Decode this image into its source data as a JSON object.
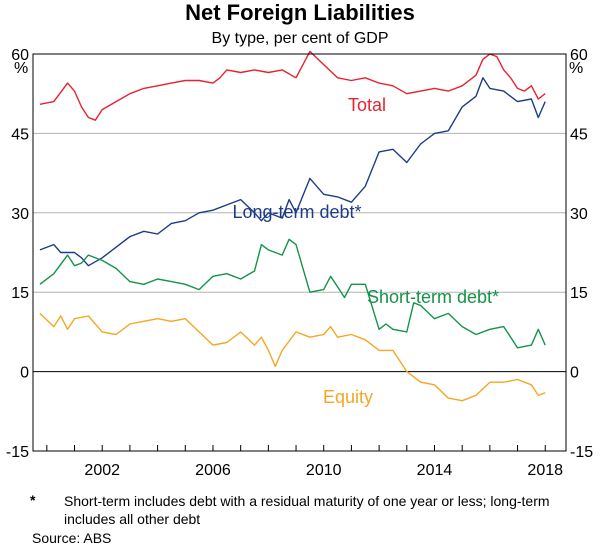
{
  "chart_data": {
    "type": "line",
    "title": "Net Foreign Liabilities",
    "subtitle": "By type, per cent of GDP",
    "ylabel_left": "%",
    "ylabel_right": "%",
    "ylim": [
      -15,
      60
    ],
    "yticks": [
      -15,
      0,
      15,
      30,
      45,
      60
    ],
    "ytick_labels": [
      "-15",
      "0",
      "15",
      "30",
      "45",
      "60"
    ],
    "xlim": [
      1999.5,
      2018.75
    ],
    "xticks": [
      2002,
      2006,
      2010,
      2014,
      2018
    ],
    "xtick_labels": [
      "2002",
      "2006",
      "2010",
      "2014",
      "2018"
    ],
    "grid": "horizontal",
    "series": [
      {
        "name": "Total",
        "color": "#e8212f",
        "points": [
          [
            1999.75,
            50.5
          ],
          [
            2000.25,
            51.0
          ],
          [
            2000.75,
            54.5
          ],
          [
            2001.0,
            53.0
          ],
          [
            2001.25,
            50.0
          ],
          [
            2001.5,
            48.0
          ],
          [
            2001.75,
            47.5
          ],
          [
            2002.0,
            49.5
          ],
          [
            2002.5,
            51.0
          ],
          [
            2003.0,
            52.5
          ],
          [
            2003.5,
            53.5
          ],
          [
            2004.0,
            54.0
          ],
          [
            2004.5,
            54.5
          ],
          [
            2005.0,
            55.0
          ],
          [
            2005.5,
            55.0
          ],
          [
            2006.0,
            54.5
          ],
          [
            2006.25,
            55.5
          ],
          [
            2006.5,
            57.0
          ],
          [
            2007.0,
            56.5
          ],
          [
            2007.5,
            57.0
          ],
          [
            2008.0,
            56.5
          ],
          [
            2008.5,
            57.0
          ],
          [
            2009.0,
            55.5
          ],
          [
            2009.5,
            60.5
          ],
          [
            2010.0,
            58.0
          ],
          [
            2010.5,
            55.5
          ],
          [
            2011.0,
            55.0
          ],
          [
            2011.5,
            55.5
          ],
          [
            2012.0,
            54.5
          ],
          [
            2012.5,
            54.0
          ],
          [
            2013.0,
            52.5
          ],
          [
            2013.5,
            53.0
          ],
          [
            2014.0,
            53.5
          ],
          [
            2014.5,
            53.0
          ],
          [
            2015.0,
            54.0
          ],
          [
            2015.5,
            56.0
          ],
          [
            2015.75,
            59.0
          ],
          [
            2016.0,
            60.0
          ],
          [
            2016.25,
            59.5
          ],
          [
            2016.5,
            57.0
          ],
          [
            2016.75,
            55.5
          ],
          [
            2017.0,
            53.5
          ],
          [
            2017.25,
            53.0
          ],
          [
            2017.5,
            54.0
          ],
          [
            2017.75,
            51.5
          ],
          [
            2018.0,
            52.5
          ]
        ]
      },
      {
        "name": "Long-term debt*",
        "color": "#1d3c87",
        "points": [
          [
            1999.75,
            23.0
          ],
          [
            2000.25,
            24.0
          ],
          [
            2000.5,
            22.5
          ],
          [
            2001.0,
            22.5
          ],
          [
            2001.25,
            21.5
          ],
          [
            2001.5,
            20.0
          ],
          [
            2002.0,
            21.5
          ],
          [
            2002.5,
            23.5
          ],
          [
            2003.0,
            25.5
          ],
          [
            2003.5,
            26.5
          ],
          [
            2004.0,
            26.0
          ],
          [
            2004.5,
            28.0
          ],
          [
            2005.0,
            28.5
          ],
          [
            2005.5,
            30.0
          ],
          [
            2006.0,
            30.5
          ],
          [
            2006.5,
            31.5
          ],
          [
            2007.0,
            32.5
          ],
          [
            2007.5,
            30.0
          ],
          [
            2007.75,
            28.5
          ],
          [
            2008.0,
            30.0
          ],
          [
            2008.5,
            29.0
          ],
          [
            2008.75,
            32.5
          ],
          [
            2009.0,
            30.0
          ],
          [
            2009.5,
            36.5
          ],
          [
            2010.0,
            33.5
          ],
          [
            2010.5,
            33.0
          ],
          [
            2011.0,
            32.0
          ],
          [
            2011.5,
            35.0
          ],
          [
            2012.0,
            41.5
          ],
          [
            2012.5,
            42.0
          ],
          [
            2013.0,
            39.5
          ],
          [
            2013.5,
            43.0
          ],
          [
            2014.0,
            45.0
          ],
          [
            2014.5,
            45.5
          ],
          [
            2015.0,
            50.0
          ],
          [
            2015.5,
            52.0
          ],
          [
            2015.75,
            55.5
          ],
          [
            2016.0,
            53.5
          ],
          [
            2016.5,
            53.0
          ],
          [
            2017.0,
            51.0
          ],
          [
            2017.5,
            51.5
          ],
          [
            2017.75,
            48.0
          ],
          [
            2018.0,
            51.0
          ]
        ]
      },
      {
        "name": "Short-term debt*",
        "color": "#14934a",
        "points": [
          [
            1999.75,
            16.5
          ],
          [
            2000.25,
            18.5
          ],
          [
            2000.75,
            22.0
          ],
          [
            2001.0,
            20.0
          ],
          [
            2001.25,
            20.5
          ],
          [
            2001.5,
            22.0
          ],
          [
            2002.0,
            21.0
          ],
          [
            2002.5,
            19.5
          ],
          [
            2003.0,
            17.0
          ],
          [
            2003.5,
            16.5
          ],
          [
            2004.0,
            17.5
          ],
          [
            2004.5,
            17.0
          ],
          [
            2005.0,
            16.5
          ],
          [
            2005.5,
            15.5
          ],
          [
            2006.0,
            18.0
          ],
          [
            2006.5,
            18.5
          ],
          [
            2007.0,
            17.5
          ],
          [
            2007.5,
            19.0
          ],
          [
            2007.75,
            24.0
          ],
          [
            2008.0,
            23.0
          ],
          [
            2008.5,
            22.0
          ],
          [
            2008.75,
            25.0
          ],
          [
            2009.0,
            24.0
          ],
          [
            2009.5,
            15.0
          ],
          [
            2010.0,
            15.5
          ],
          [
            2010.25,
            18.0
          ],
          [
            2010.5,
            16.0
          ],
          [
            2010.75,
            14.0
          ],
          [
            2011.0,
            16.5
          ],
          [
            2011.5,
            16.5
          ],
          [
            2012.0,
            8.0
          ],
          [
            2012.25,
            9.0
          ],
          [
            2012.5,
            8.0
          ],
          [
            2013.0,
            7.5
          ],
          [
            2013.25,
            13.0
          ],
          [
            2013.5,
            12.5
          ],
          [
            2014.0,
            10.0
          ],
          [
            2014.5,
            11.0
          ],
          [
            2015.0,
            8.5
          ],
          [
            2015.5,
            7.0
          ],
          [
            2016.0,
            8.0
          ],
          [
            2016.5,
            8.5
          ],
          [
            2017.0,
            4.5
          ],
          [
            2017.5,
            5.0
          ],
          [
            2017.75,
            8.0
          ],
          [
            2018.0,
            5.0
          ]
        ]
      },
      {
        "name": "Equity",
        "color": "#f5a623",
        "points": [
          [
            1999.75,
            11.0
          ],
          [
            2000.25,
            8.5
          ],
          [
            2000.5,
            10.5
          ],
          [
            2000.75,
            8.0
          ],
          [
            2001.0,
            10.0
          ],
          [
            2001.5,
            10.5
          ],
          [
            2002.0,
            7.5
          ],
          [
            2002.5,
            7.0
          ],
          [
            2003.0,
            9.0
          ],
          [
            2003.5,
            9.5
          ],
          [
            2004.0,
            10.0
          ],
          [
            2004.5,
            9.5
          ],
          [
            2005.0,
            10.0
          ],
          [
            2005.5,
            7.5
          ],
          [
            2006.0,
            5.0
          ],
          [
            2006.5,
            5.5
          ],
          [
            2007.0,
            7.5
          ],
          [
            2007.5,
            5.0
          ],
          [
            2007.75,
            6.5
          ],
          [
            2008.0,
            4.0
          ],
          [
            2008.25,
            1.0
          ],
          [
            2008.5,
            4.0
          ],
          [
            2009.0,
            7.5
          ],
          [
            2009.5,
            6.5
          ],
          [
            2010.0,
            7.0
          ],
          [
            2010.25,
            8.5
          ],
          [
            2010.5,
            6.5
          ],
          [
            2011.0,
            7.0
          ],
          [
            2011.5,
            6.0
          ],
          [
            2012.0,
            4.0
          ],
          [
            2012.5,
            4.0
          ],
          [
            2013.0,
            0.0
          ],
          [
            2013.5,
            -2.0
          ],
          [
            2014.0,
            -2.5
          ],
          [
            2014.5,
            -5.0
          ],
          [
            2015.0,
            -5.5
          ],
          [
            2015.5,
            -4.5
          ],
          [
            2016.0,
            -2.0
          ],
          [
            2016.5,
            -2.0
          ],
          [
            2017.0,
            -1.5
          ],
          [
            2017.5,
            -2.5
          ],
          [
            2017.75,
            -4.5
          ],
          [
            2018.0,
            -4.0
          ]
        ]
      }
    ],
    "annotations": {
      "total": "Total",
      "long_term": "Long-term debt*",
      "short_term": "Short-term debt*",
      "equity": "Equity"
    }
  },
  "footnote": {
    "marker": "*",
    "text": "Short-term includes debt with a residual maturity of one year or less; long-term includes all other debt"
  },
  "source": "Source:    ABS"
}
